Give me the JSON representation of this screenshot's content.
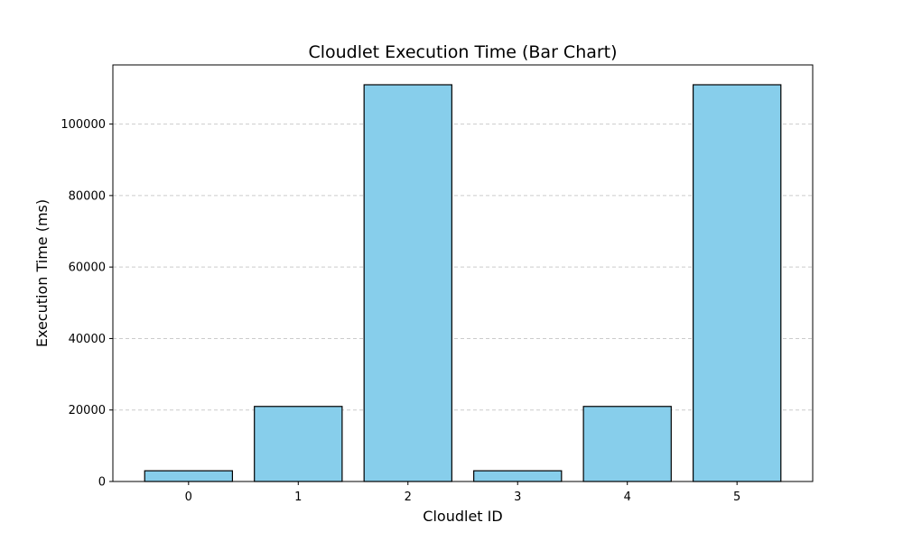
{
  "chart_data": {
    "type": "bar",
    "title": "Cloudlet Execution Time (Bar Chart)",
    "xlabel": "Cloudlet ID",
    "ylabel": "Execution Time (ms)",
    "categories": [
      "0",
      "1",
      "2",
      "3",
      "4",
      "5"
    ],
    "values": [
      3000,
      21000,
      111000,
      3000,
      21000,
      111000
    ],
    "ylim": [
      0,
      116550
    ],
    "yticks": [
      0,
      20000,
      40000,
      60000,
      80000,
      100000
    ],
    "ytick_labels": [
      "0",
      "20000",
      "40000",
      "60000",
      "80000",
      "100000"
    ],
    "grid": "y-dashed",
    "legend": "none"
  },
  "colors": {
    "bar_fill": "#87ceeb",
    "bar_edge": "#000000",
    "grid": "#cccccc",
    "axis": "#000000"
  }
}
